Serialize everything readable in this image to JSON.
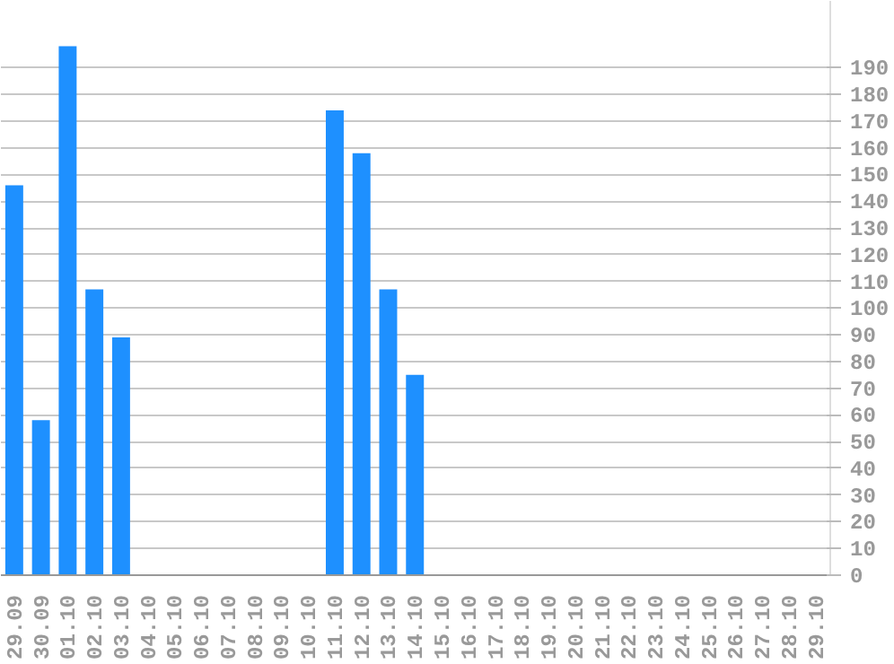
{
  "chart_data": {
    "type": "bar",
    "categories": [
      "29.09",
      "30.09",
      "01.10",
      "02.10",
      "03.10",
      "04.10",
      "05.10",
      "06.10",
      "07.10",
      "08.10",
      "09.10",
      "10.10",
      "11.10",
      "12.10",
      "13.10",
      "14.10",
      "15.10",
      "16.10",
      "17.10",
      "18.10",
      "19.10",
      "20.10",
      "21.10",
      "22.10",
      "23.10",
      "24.10",
      "25.10",
      "26.10",
      "27.10",
      "28.10",
      "29.10"
    ],
    "values": [
      146,
      58,
      198,
      107,
      89,
      0,
      0,
      0,
      0,
      0,
      0,
      0,
      174,
      158,
      107,
      75,
      0,
      0,
      0,
      0,
      0,
      0,
      0,
      0,
      0,
      0,
      0,
      0,
      0,
      0,
      0
    ],
    "color": "#1e90ff",
    "ylim": [
      0,
      215
    ],
    "yticks": [
      0,
      10,
      20,
      30,
      40,
      50,
      60,
      70,
      80,
      90,
      100,
      110,
      120,
      130,
      140,
      150,
      160,
      170,
      180,
      190
    ],
    "grid": "y"
  }
}
